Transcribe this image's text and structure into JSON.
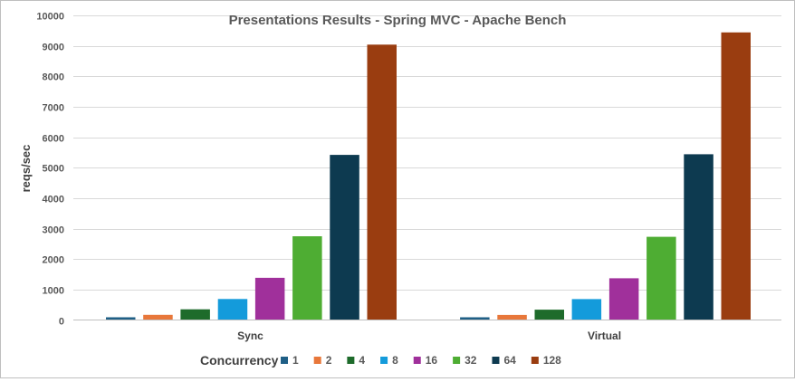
{
  "chart_data": {
    "type": "bar",
    "title": "Presentations Results - Spring MVC - Apache Bench",
    "xlabel": "",
    "ylabel": "reqs/sec",
    "ylim": [
      0,
      10000
    ],
    "yticks": [
      0,
      1000,
      2000,
      3000,
      4000,
      5000,
      6000,
      7000,
      8000,
      9000,
      10000
    ],
    "grid": true,
    "legend_position": "bottom",
    "legend_title": "Concurrency",
    "categories": [
      "Sync",
      "Virtual"
    ],
    "series": [
      {
        "name": "1",
        "color": "#1f5f86",
        "values": [
          90,
          90
        ]
      },
      {
        "name": "2",
        "color": "#e8773a",
        "values": [
          170,
          165
        ]
      },
      {
        "name": "4",
        "color": "#1e6b2b",
        "values": [
          350,
          340
        ]
      },
      {
        "name": "8",
        "color": "#149bdb",
        "values": [
          690,
          685
        ]
      },
      {
        "name": "16",
        "color": "#a0309b",
        "values": [
          1385,
          1370
        ]
      },
      {
        "name": "32",
        "color": "#4ead33",
        "values": [
          2750,
          2730
        ]
      },
      {
        "name": "64",
        "color": "#0d3a50",
        "values": [
          5420,
          5440
        ]
      },
      {
        "name": "128",
        "color": "#9a3d10",
        "values": [
          9040,
          9440
        ]
      }
    ]
  }
}
